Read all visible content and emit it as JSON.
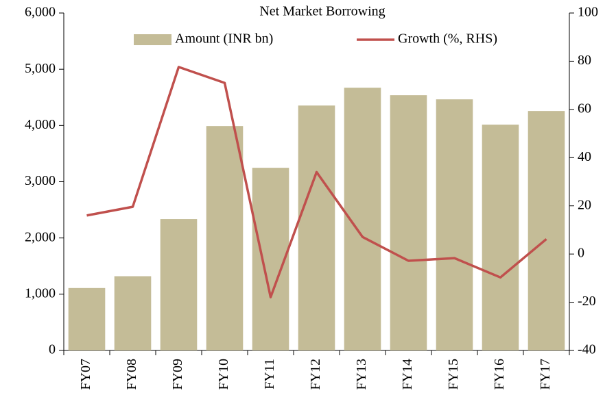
{
  "chart_data": {
    "type": "bar",
    "title": "Net Market Borrowing",
    "categories": [
      "FY07",
      "FY08",
      "FY09",
      "FY10",
      "FY11",
      "FY12",
      "FY13",
      "FY14",
      "FY15",
      "FY16",
      "FY17"
    ],
    "series": [
      {
        "name": "Amount (INR bn)",
        "type": "bar",
        "color": "#c4bc97",
        "values": [
          1110,
          1320,
          2336,
          3990,
          3248,
          4355,
          4672,
          4538,
          4465,
          4015,
          4258
        ]
      },
      {
        "name": "Growth (%, RHS)",
        "type": "line",
        "axis": "y2",
        "color": "#c0504d",
        "values": [
          16,
          19.6,
          77.6,
          71,
          -17.9,
          34,
          7.1,
          -2.8,
          -1.7,
          -9.7,
          6.2
        ]
      }
    ],
    "ylim": [
      0,
      6000
    ],
    "yticks": [
      0,
      {
        "value": 1000,
        "label": "1,000"
      },
      {
        "value": 2000,
        "label": "2,000"
      },
      {
        "value": 3000,
        "label": "3,000"
      },
      {
        "value": 4000,
        "label": "4,000"
      },
      {
        "value": 5000,
        "label": "5,000"
      },
      {
        "value": 6000,
        "label": "6,000"
      }
    ],
    "y2lim": [
      -40,
      100
    ],
    "y2ticks": [
      -40,
      -20,
      0,
      20,
      40,
      60,
      80,
      100
    ],
    "legend": "top",
    "grid": false
  }
}
